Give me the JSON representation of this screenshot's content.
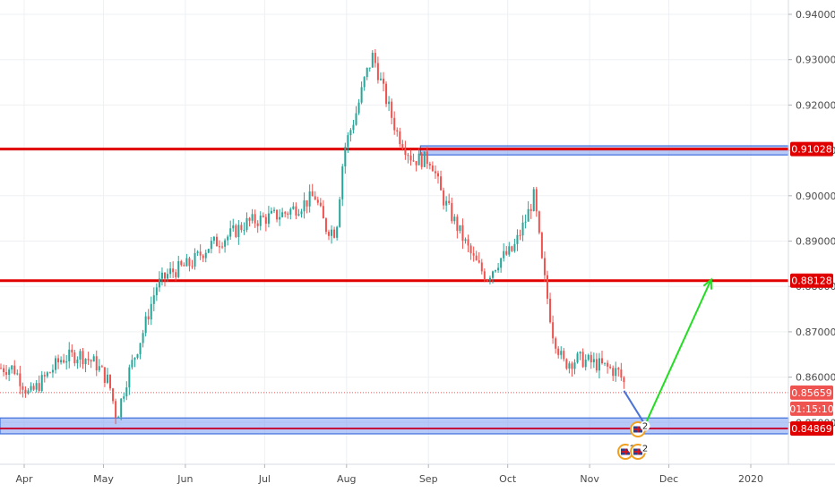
{
  "chart_data": {
    "type": "candlestick",
    "x_ticks": [
      "Apr",
      "May",
      "Jun",
      "Jul",
      "Aug",
      "Sep",
      "Oct",
      "Nov",
      "Dec",
      "2020"
    ],
    "y_ticks": [
      "0.94000",
      "0.93000",
      "0.92000",
      "0.91000",
      "0.90000",
      "0.89000",
      "0.88000",
      "0.87000",
      "0.86000",
      "0.85000"
    ],
    "ylim": [
      0.8425,
      0.9425
    ],
    "grid": true,
    "colors": {
      "up": "#26a69a",
      "down": "#ef5350",
      "level": "#e00000",
      "zone": "#3f6fdc",
      "arrow": "#22dd22",
      "current": "#ef5350",
      "path": "#4a72d8"
    },
    "series": [
      {
        "name": "",
        "points": [
          [
            "Mar 28",
            0.862
          ],
          [
            "Apr 3",
            0.856
          ],
          [
            "Apr 9",
            0.86
          ],
          [
            "Apr 15",
            0.864
          ],
          [
            "Apr 22",
            0.865
          ],
          [
            "Apr 28",
            0.863
          ],
          [
            "May 3",
            0.859
          ],
          [
            "May 6",
            0.851
          ],
          [
            "May 10",
            0.86
          ],
          [
            "May 16",
            0.87
          ],
          [
            "May 21",
            0.88
          ],
          [
            "May 26",
            0.883
          ],
          [
            "Jun 3",
            0.885
          ],
          [
            "Jun 10",
            0.889
          ],
          [
            "Jun 17",
            0.891
          ],
          [
            "Jun 24",
            0.894
          ],
          [
            "Jul 1",
            0.895
          ],
          [
            "Jul 8",
            0.896
          ],
          [
            "Jul 15",
            0.898
          ],
          [
            "Jul 20",
            0.9
          ],
          [
            "Jul 24",
            0.893
          ],
          [
            "Jul 28",
            0.892
          ],
          [
            "Jul 31",
            0.91
          ],
          [
            "Aug 5",
            0.919
          ],
          [
            "Aug 8",
            0.926
          ],
          [
            "Aug 11",
            0.931
          ],
          [
            "Aug 15",
            0.923
          ],
          [
            "Aug 20",
            0.914
          ],
          [
            "Aug 26",
            0.908
          ],
          [
            "Sep 2",
            0.908
          ],
          [
            "Sep 6",
            0.9
          ],
          [
            "Sep 12",
            0.893
          ],
          [
            "Sep 18",
            0.886
          ],
          [
            "Sep 23",
            0.882
          ],
          [
            "Sep 28",
            0.886
          ],
          [
            "Oct 3",
            0.888
          ],
          [
            "Oct 8",
            0.895
          ],
          [
            "Oct 11",
            0.9
          ],
          [
            "Oct 14",
            0.885
          ],
          [
            "Oct 18",
            0.87
          ],
          [
            "Oct 22",
            0.863
          ],
          [
            "Oct 28",
            0.864
          ],
          [
            "Nov 3",
            0.863
          ],
          [
            "Nov 8",
            0.862
          ],
          [
            "Nov 12",
            0.861
          ],
          [
            "Nov 15",
            0.8575
          ]
        ]
      }
    ],
    "levels": [
      {
        "value": 0.91028,
        "label": "0.91028"
      },
      {
        "value": 0.88128,
        "label": "0.88128"
      }
    ],
    "zones": [
      {
        "from": "Aug 29",
        "to": "Dec 31",
        "low": 0.909,
        "high": 0.911
      },
      {
        "from": "Mar 28",
        "to": "Dec 31",
        "low": 0.8475,
        "high": 0.851
      }
    ],
    "support_level": {
      "value": 0.84869,
      "label": "0.84869"
    },
    "current_price": {
      "value": 0.85659,
      "label": "0.85659",
      "countdown": "01:15:10"
    },
    "forecast_path": [
      [
        "Nov 14",
        0.857
      ],
      [
        "Nov 22",
        0.8495
      ],
      [
        "Dec 17",
        0.8815
      ]
    ],
    "event_badges": [
      {
        "date": "Nov 22",
        "count": "2",
        "row": "upper"
      },
      {
        "date": "Nov 19",
        "count": "2",
        "row": "lower"
      },
      {
        "date": "Nov 21",
        "count": "2",
        "row": "lower"
      }
    ]
  }
}
